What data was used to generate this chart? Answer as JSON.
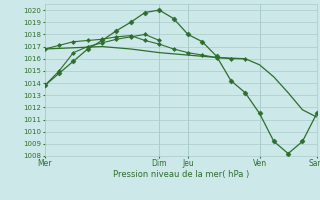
{
  "title": "",
  "xlabel": "Pression niveau de la mer( hPa )",
  "ylim": [
    1008,
    1020.5
  ],
  "bg_color": "#cce8e8",
  "grid_color": "#aacccc",
  "line_color": "#2d6e2d",
  "xtick_labels": [
    "Mer",
    "Dim",
    "Jeu",
    "Ven",
    "Sam"
  ],
  "xtick_positions": [
    0,
    8,
    10,
    15,
    19
  ],
  "ytick_vals": [
    1008,
    1009,
    1010,
    1011,
    1012,
    1013,
    1014,
    1015,
    1016,
    1017,
    1018,
    1019,
    1020
  ],
  "series": [
    {
      "x": [
        0,
        2,
        4,
        6,
        8,
        10,
        12,
        14,
        15,
        16,
        17,
        18,
        19
      ],
      "y": [
        1016.8,
        1016.9,
        1017.0,
        1016.8,
        1016.5,
        1016.3,
        1016.1,
        1016.0,
        1015.5,
        1014.5,
        1013.2,
        1011.8,
        1011.2
      ],
      "marker": null,
      "lw": 0.9
    },
    {
      "x": [
        0,
        1,
        2,
        3,
        4,
        5,
        6,
        7,
        8,
        9,
        10,
        11,
        12,
        13,
        14
      ],
      "y": [
        1016.8,
        1017.1,
        1017.4,
        1017.5,
        1017.6,
        1017.8,
        1017.9,
        1017.5,
        1017.2,
        1016.8,
        1016.5,
        1016.3,
        1016.1,
        1016.0,
        1016.0
      ],
      "marker": "D",
      "markersize": 2,
      "lw": 0.8
    },
    {
      "x": [
        0,
        1,
        2,
        3,
        4,
        5,
        6,
        7,
        8
      ],
      "y": [
        1013.8,
        1015.0,
        1016.5,
        1017.0,
        1017.3,
        1017.6,
        1017.8,
        1018.0,
        1017.5
      ],
      "marker": "D",
      "markersize": 2,
      "lw": 0.8
    },
    {
      "x": [
        0,
        1,
        2,
        3,
        4,
        5,
        6,
        7,
        8,
        9,
        10,
        11,
        12,
        13,
        14,
        15,
        16,
        17,
        18,
        19
      ],
      "y": [
        1013.8,
        1014.8,
        1015.8,
        1016.8,
        1017.5,
        1018.3,
        1019.0,
        1019.8,
        1020.0,
        1019.3,
        1018.0,
        1017.4,
        1016.2,
        1014.2,
        1013.2,
        1011.5,
        1009.2,
        1008.2,
        1009.2,
        1011.5
      ],
      "marker": "D",
      "markersize": 2.5,
      "lw": 0.9
    }
  ]
}
